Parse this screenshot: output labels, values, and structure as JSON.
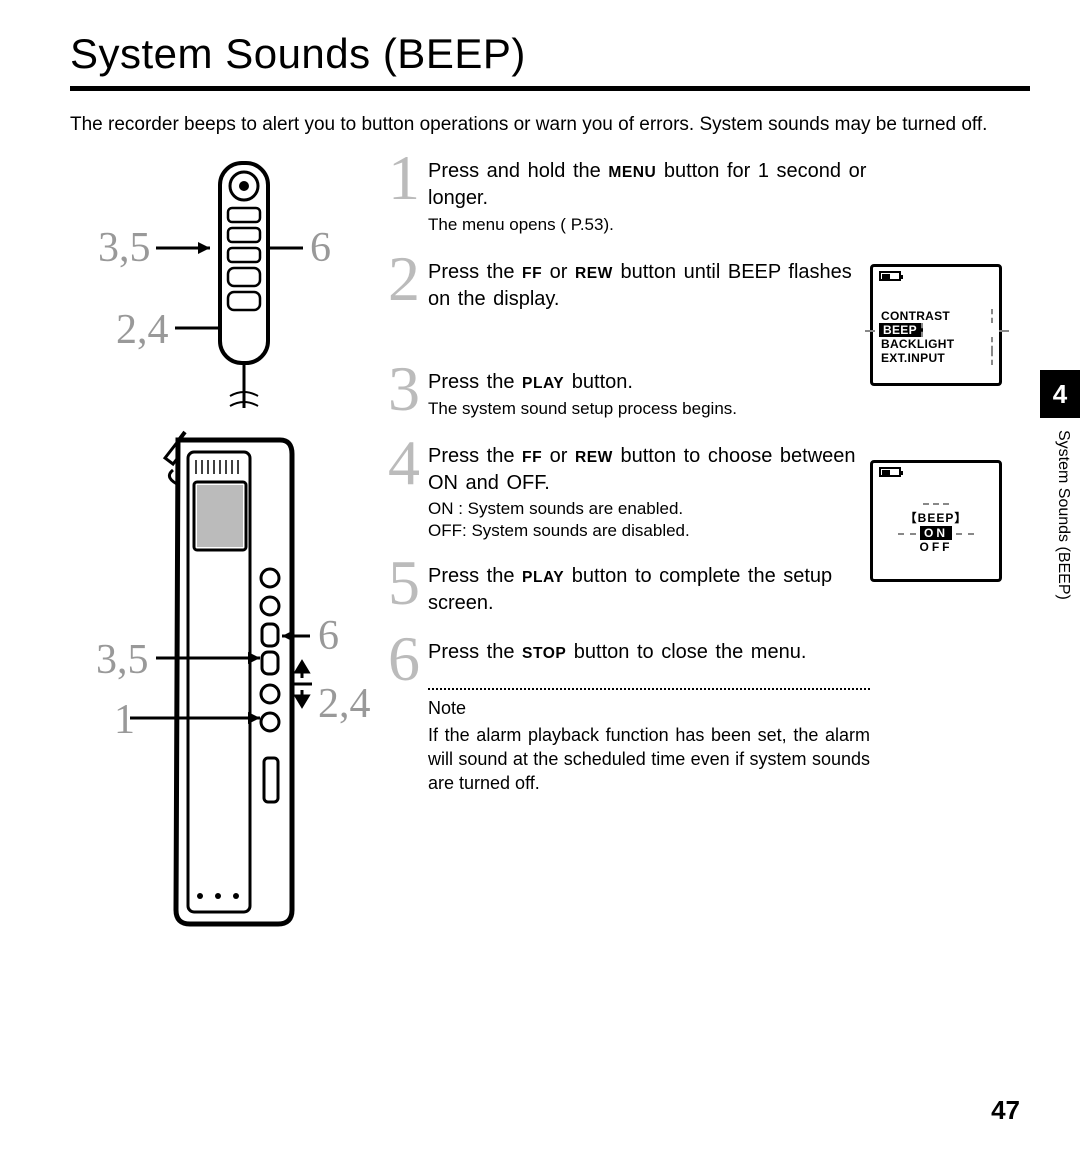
{
  "title": "System Sounds (BEEP)",
  "intro": "The recorder beeps to alert you to button operations or warn you of errors. System sounds may be turned off.",
  "chapter_number": "4",
  "vertical_label": "System Sounds (BEEP)",
  "page_number": "47",
  "callouts": {
    "remote_left": "3,5",
    "remote_right": "6",
    "remote_bottom": "2,4",
    "device_left_top": "3,5",
    "device_left_bottom": "1",
    "device_right_top": "6",
    "device_right_bottom": "2,4"
  },
  "buttons": {
    "menu": "MENU",
    "ff": "FF",
    "rew": "REW",
    "play": "PLAY",
    "stop": "STOP"
  },
  "steps": [
    {
      "num": "1",
      "main_a": "Press and hold the ",
      "btn1": "menu",
      "main_b": " button for 1 second or longer.",
      "sub": "The menu opens (   P.53)."
    },
    {
      "num": "2",
      "main_a": "Press the ",
      "btn1": "ff",
      "mid": " or ",
      "btn2": "rew",
      "main_b": " button until  BEEP  flashes on the display."
    },
    {
      "num": "3",
      "main_a": "Press the ",
      "btn1": "play",
      "main_b": " button.",
      "sub": "The system sound setup process begins."
    },
    {
      "num": "4",
      "main_a": "Press the ",
      "btn1": "ff",
      "mid": " or ",
      "btn2": "rew",
      "main_b": " button to choose between ON and OFF.",
      "options": [
        "ON  : System sounds are enabled.",
        "OFF: System sounds are disabled."
      ]
    },
    {
      "num": "5",
      "main_a": "Press the ",
      "btn1": "play",
      "main_b": " button to complete the setup screen."
    },
    {
      "num": "6",
      "main_a": "Press the ",
      "btn1": "stop",
      "main_b": " button to close the menu."
    }
  ],
  "note_label": "Note",
  "note_body": "If the alarm playback function has been set, the alarm will sound at the scheduled time even if system sounds are turned off.",
  "lcd1": {
    "items": [
      "CONTRAST",
      "BEEP",
      "BACKLIGHT",
      "EXT.INPUT"
    ],
    "selected_index": 1
  },
  "lcd2": {
    "header": "【BEEP】",
    "options": [
      "ON",
      "OFF"
    ],
    "selected_index": 0
  }
}
